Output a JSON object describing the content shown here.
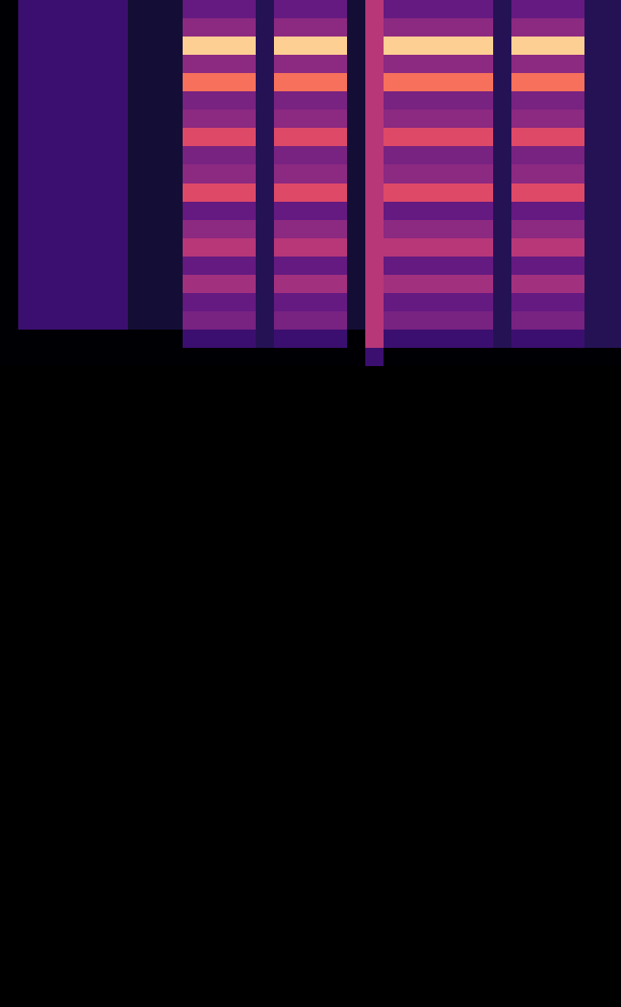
{
  "chart_data": {
    "type": "heatmap",
    "color": "magma",
    "tick_labels": false,
    "xlim": [
      0,
      34
    ],
    "ylim": [
      55,
      0
    ],
    "color_range": [
      0,
      1
    ],
    "cells": [
      [
        0,
        0.2,
        0.2,
        0.2,
        0.2,
        0.2,
        0.2,
        0.1,
        0.1,
        0.1,
        0.3,
        0.3,
        0.3,
        0.3,
        0.15,
        0.3,
        0.3,
        0.3,
        0.3,
        0.1,
        0.5,
        0.3,
        0.3,
        0.3,
        0.3,
        0.3,
        0.3,
        0.15,
        0.3,
        0.3,
        0.3,
        0.3,
        0.15,
        0.15
      ],
      [
        0,
        0.2,
        0.2,
        0.2,
        0.2,
        0.2,
        0.2,
        0.1,
        0.1,
        0.1,
        0.4,
        0.4,
        0.4,
        0.4,
        0.15,
        0.4,
        0.4,
        0.4,
        0.4,
        0.1,
        0.5,
        0.4,
        0.4,
        0.4,
        0.4,
        0.4,
        0.4,
        0.15,
        0.4,
        0.4,
        0.4,
        0.4,
        0.15,
        0.15
      ],
      [
        0,
        0.2,
        0.2,
        0.2,
        0.2,
        0.2,
        0.2,
        0.1,
        0.1,
        0.1,
        0.9,
        0.9,
        0.9,
        0.9,
        0.15,
        0.9,
        0.9,
        0.9,
        0.9,
        0.1,
        0.5,
        0.9,
        0.9,
        0.9,
        0.9,
        0.9,
        0.9,
        0.15,
        0.9,
        0.9,
        0.9,
        0.9,
        0.15,
        0.15
      ],
      [
        0,
        0.2,
        0.2,
        0.2,
        0.2,
        0.2,
        0.2,
        0.1,
        0.1,
        0.1,
        0.4,
        0.4,
        0.4,
        0.4,
        0.15,
        0.4,
        0.4,
        0.4,
        0.4,
        0.1,
        0.5,
        0.4,
        0.4,
        0.4,
        0.4,
        0.4,
        0.4,
        0.15,
        0.4,
        0.4,
        0.4,
        0.4,
        0.15,
        0.15
      ],
      [
        0,
        0.2,
        0.2,
        0.2,
        0.2,
        0.2,
        0.2,
        0.1,
        0.1,
        0.1,
        0.7,
        0.7,
        0.7,
        0.7,
        0.15,
        0.7,
        0.7,
        0.7,
        0.7,
        0.1,
        0.5,
        0.7,
        0.7,
        0.7,
        0.7,
        0.7,
        0.7,
        0.15,
        0.7,
        0.7,
        0.7,
        0.7,
        0.15,
        0.15
      ],
      [
        0,
        0.2,
        0.2,
        0.2,
        0.2,
        0.2,
        0.2,
        0.1,
        0.1,
        0.1,
        0.35,
        0.35,
        0.35,
        0.35,
        0.15,
        0.35,
        0.35,
        0.35,
        0.35,
        0.1,
        0.5,
        0.35,
        0.35,
        0.35,
        0.35,
        0.35,
        0.35,
        0.15,
        0.35,
        0.35,
        0.35,
        0.35,
        0.15,
        0.15
      ],
      [
        0,
        0.2,
        0.2,
        0.2,
        0.2,
        0.2,
        0.2,
        0.1,
        0.1,
        0.1,
        0.4,
        0.4,
        0.4,
        0.4,
        0.15,
        0.4,
        0.4,
        0.4,
        0.4,
        0.1,
        0.5,
        0.4,
        0.4,
        0.4,
        0.4,
        0.4,
        0.4,
        0.15,
        0.4,
        0.4,
        0.4,
        0.4,
        0.15,
        0.15
      ],
      [
        0,
        0.2,
        0.2,
        0.2,
        0.2,
        0.2,
        0.2,
        0.1,
        0.1,
        0.1,
        0.6,
        0.6,
        0.6,
        0.6,
        0.15,
        0.6,
        0.6,
        0.6,
        0.6,
        0.1,
        0.5,
        0.6,
        0.6,
        0.6,
        0.6,
        0.6,
        0.6,
        0.15,
        0.6,
        0.6,
        0.6,
        0.6,
        0.15,
        0.15
      ],
      [
        0,
        0.2,
        0.2,
        0.2,
        0.2,
        0.2,
        0.2,
        0.1,
        0.1,
        0.1,
        0.35,
        0.35,
        0.35,
        0.35,
        0.15,
        0.35,
        0.35,
        0.35,
        0.35,
        0.1,
        0.5,
        0.35,
        0.35,
        0.35,
        0.35,
        0.35,
        0.35,
        0.15,
        0.35,
        0.35,
        0.35,
        0.35,
        0.15,
        0.15
      ],
      [
        0,
        0.2,
        0.2,
        0.2,
        0.2,
        0.2,
        0.2,
        0.1,
        0.1,
        0.1,
        0.4,
        0.4,
        0.4,
        0.4,
        0.15,
        0.4,
        0.4,
        0.4,
        0.4,
        0.1,
        0.5,
        0.4,
        0.4,
        0.4,
        0.4,
        0.4,
        0.4,
        0.15,
        0.4,
        0.4,
        0.4,
        0.4,
        0.15,
        0.15
      ],
      [
        0,
        0.2,
        0.2,
        0.2,
        0.2,
        0.2,
        0.2,
        0.1,
        0.1,
        0.1,
        0.6,
        0.6,
        0.6,
        0.6,
        0.15,
        0.6,
        0.6,
        0.6,
        0.6,
        0.1,
        0.5,
        0.6,
        0.6,
        0.6,
        0.6,
        0.6,
        0.6,
        0.15,
        0.6,
        0.6,
        0.6,
        0.6,
        0.15,
        0.15
      ],
      [
        0,
        0.2,
        0.2,
        0.2,
        0.2,
        0.2,
        0.2,
        0.1,
        0.1,
        0.1,
        0.3,
        0.3,
        0.3,
        0.3,
        0.15,
        0.3,
        0.3,
        0.3,
        0.3,
        0.1,
        0.5,
        0.3,
        0.3,
        0.3,
        0.3,
        0.3,
        0.3,
        0.15,
        0.3,
        0.3,
        0.3,
        0.3,
        0.15,
        0.15
      ],
      [
        0,
        0.2,
        0.2,
        0.2,
        0.2,
        0.2,
        0.2,
        0.1,
        0.1,
        0.1,
        0.4,
        0.4,
        0.4,
        0.4,
        0.15,
        0.4,
        0.4,
        0.4,
        0.4,
        0.1,
        0.5,
        0.4,
        0.4,
        0.4,
        0.4,
        0.4,
        0.4,
        0.15,
        0.4,
        0.4,
        0.4,
        0.4,
        0.15,
        0.15
      ],
      [
        0,
        0.2,
        0.2,
        0.2,
        0.2,
        0.2,
        0.2,
        0.1,
        0.1,
        0.1,
        0.5,
        0.5,
        0.5,
        0.5,
        0.15,
        0.5,
        0.5,
        0.5,
        0.5,
        0.1,
        0.5,
        0.5,
        0.5,
        0.5,
        0.5,
        0.5,
        0.5,
        0.15,
        0.5,
        0.5,
        0.5,
        0.5,
        0.15,
        0.15
      ],
      [
        0,
        0.2,
        0.2,
        0.2,
        0.2,
        0.2,
        0.2,
        0.1,
        0.1,
        0.1,
        0.3,
        0.3,
        0.3,
        0.3,
        0.15,
        0.3,
        0.3,
        0.3,
        0.3,
        0.1,
        0.5,
        0.3,
        0.3,
        0.3,
        0.3,
        0.3,
        0.3,
        0.15,
        0.3,
        0.3,
        0.3,
        0.3,
        0.15,
        0.15
      ],
      [
        0,
        0.2,
        0.2,
        0.2,
        0.2,
        0.2,
        0.2,
        0.1,
        0.1,
        0.1,
        0.45,
        0.45,
        0.45,
        0.45,
        0.15,
        0.45,
        0.45,
        0.45,
        0.45,
        0.1,
        0.5,
        0.45,
        0.45,
        0.45,
        0.45,
        0.45,
        0.45,
        0.15,
        0.45,
        0.45,
        0.45,
        0.45,
        0.15,
        0.15
      ],
      [
        0,
        0.2,
        0.2,
        0.2,
        0.2,
        0.2,
        0.2,
        0.1,
        0.1,
        0.1,
        0.3,
        0.3,
        0.3,
        0.3,
        0.15,
        0.3,
        0.3,
        0.3,
        0.3,
        0.1,
        0.5,
        0.3,
        0.3,
        0.3,
        0.3,
        0.3,
        0.3,
        0.15,
        0.3,
        0.3,
        0.3,
        0.3,
        0.15,
        0.15
      ],
      [
        0,
        0.2,
        0.2,
        0.2,
        0.2,
        0.2,
        0.2,
        0.1,
        0.1,
        0.1,
        0.35,
        0.35,
        0.35,
        0.35,
        0.15,
        0.35,
        0.35,
        0.35,
        0.35,
        0.1,
        0.5,
        0.35,
        0.35,
        0.35,
        0.35,
        0.35,
        0.35,
        0.15,
        0.35,
        0.35,
        0.35,
        0.35,
        0.15,
        0.15
      ],
      [
        0,
        0,
        0,
        0,
        0,
        0,
        0,
        0,
        0,
        0,
        0.2,
        0.2,
        0.2,
        0.2,
        0.15,
        0.2,
        0.2,
        0.2,
        0.2,
        0,
        0.5,
        0.2,
        0.2,
        0.2,
        0.2,
        0.2,
        0.2,
        0.15,
        0.2,
        0.2,
        0.2,
        0.2,
        0.15,
        0.15
      ],
      [
        0,
        0,
        0,
        0,
        0,
        0,
        0,
        0,
        0,
        0,
        0,
        0,
        0,
        0,
        0,
        0,
        0,
        0,
        0,
        0,
        0.2,
        0,
        0,
        0,
        0,
        0,
        0,
        0,
        0,
        0,
        0,
        0,
        0,
        0
      ]
    ]
  }
}
